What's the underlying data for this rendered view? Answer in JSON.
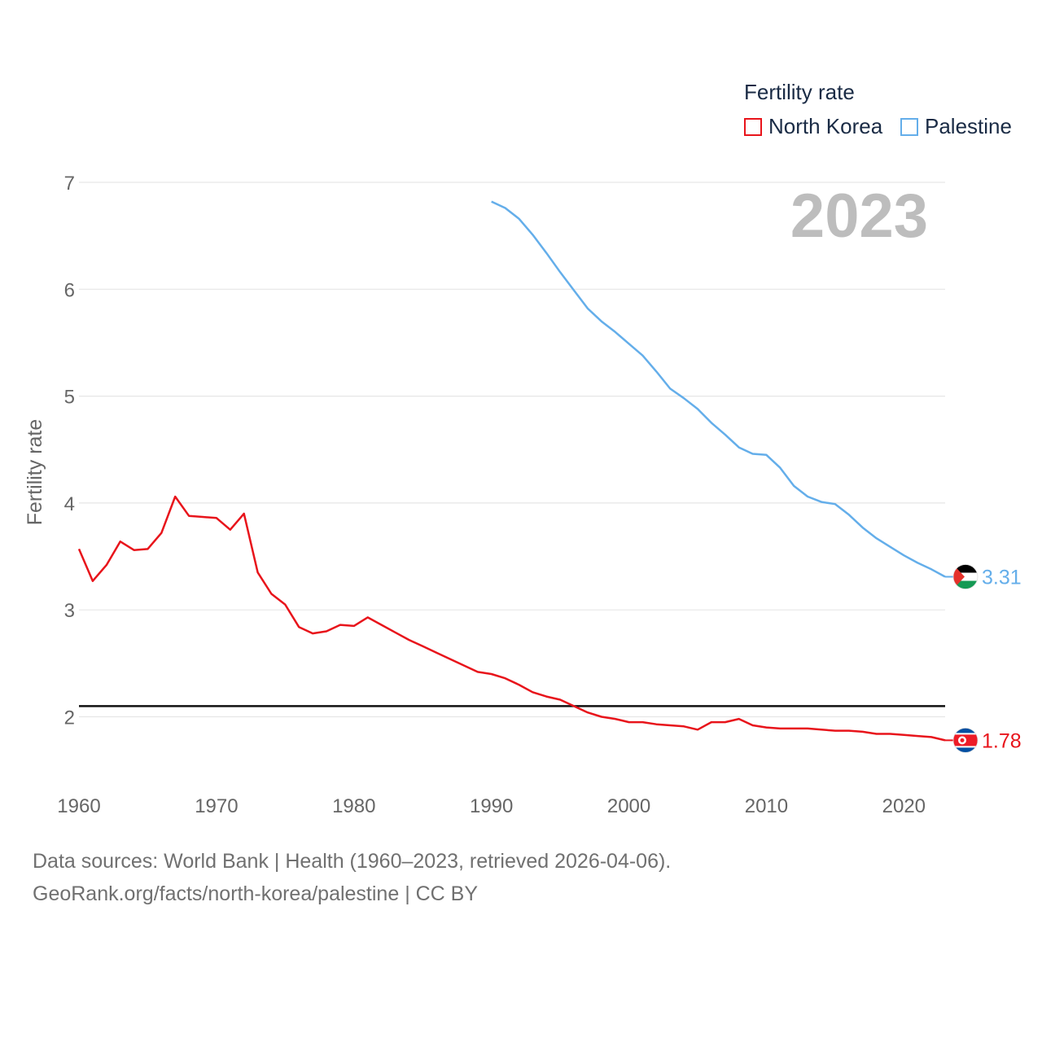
{
  "chart_data": {
    "type": "line",
    "ylabel": "Fertility rate",
    "xlim": [
      1960,
      2023
    ],
    "ylim": [
      1.3,
      7
    ],
    "yticks": [
      2,
      3,
      4,
      5,
      6,
      7
    ],
    "xticks": [
      1960,
      1970,
      1980,
      1990,
      2000,
      2010,
      2020
    ],
    "reference_line": 2.1,
    "current_year": "2023",
    "legend": {
      "title": "Fertility rate",
      "position": "top-right"
    },
    "series": [
      {
        "name": "North Korea",
        "color": "#e8141b",
        "end_label": "1.78",
        "flag": "north-korea",
        "x": [
          1960,
          1961,
          1962,
          1963,
          1964,
          1965,
          1966,
          1967,
          1968,
          1969,
          1970,
          1971,
          1972,
          1973,
          1974,
          1975,
          1976,
          1977,
          1978,
          1979,
          1980,
          1981,
          1982,
          1983,
          1984,
          1985,
          1986,
          1987,
          1988,
          1989,
          1990,
          1991,
          1992,
          1993,
          1994,
          1995,
          1996,
          1997,
          1998,
          1999,
          2000,
          2001,
          2002,
          2003,
          2004,
          2005,
          2006,
          2007,
          2008,
          2009,
          2010,
          2011,
          2012,
          2013,
          2014,
          2015,
          2016,
          2017,
          2018,
          2019,
          2020,
          2021,
          2022,
          2023
        ],
        "values": [
          3.57,
          3.27,
          3.42,
          3.64,
          3.56,
          3.57,
          3.72,
          4.06,
          3.88,
          3.87,
          3.86,
          3.75,
          3.9,
          3.35,
          3.15,
          3.05,
          2.84,
          2.78,
          2.8,
          2.86,
          2.85,
          2.93,
          2.86,
          2.79,
          2.72,
          2.66,
          2.6,
          2.54,
          2.48,
          2.42,
          2.4,
          2.36,
          2.3,
          2.23,
          2.19,
          2.16,
          2.1,
          2.04,
          2.0,
          1.98,
          1.95,
          1.95,
          1.93,
          1.92,
          1.91,
          1.88,
          1.95,
          1.95,
          1.98,
          1.92,
          1.9,
          1.89,
          1.89,
          1.89,
          1.88,
          1.87,
          1.87,
          1.86,
          1.84,
          1.84,
          1.83,
          1.82,
          1.81,
          1.78
        ]
      },
      {
        "name": "Palestine",
        "color": "#64aeea",
        "end_label": "3.31",
        "flag": "palestine",
        "x": [
          1990,
          1991,
          1992,
          1993,
          1994,
          1995,
          1996,
          1997,
          1998,
          1999,
          2000,
          2001,
          2002,
          2003,
          2004,
          2005,
          2006,
          2007,
          2008,
          2009,
          2010,
          2011,
          2012,
          2013,
          2014,
          2015,
          2016,
          2017,
          2018,
          2019,
          2020,
          2021,
          2022,
          2023
        ],
        "values": [
          6.82,
          6.76,
          6.66,
          6.51,
          6.34,
          6.16,
          5.99,
          5.82,
          5.7,
          5.6,
          5.49,
          5.38,
          5.23,
          5.07,
          4.98,
          4.88,
          4.75,
          4.64,
          4.52,
          4.46,
          4.45,
          4.33,
          4.16,
          4.06,
          4.01,
          3.99,
          3.89,
          3.77,
          3.67,
          3.59,
          3.51,
          3.44,
          3.38,
          3.31
        ]
      }
    ]
  },
  "footer": {
    "line1": "Data sources: World Bank | Health (1960–2023, retrieved 2026-04-06).",
    "line2": "GeoRank.org/facts/north-korea/palestine | CC BY"
  }
}
